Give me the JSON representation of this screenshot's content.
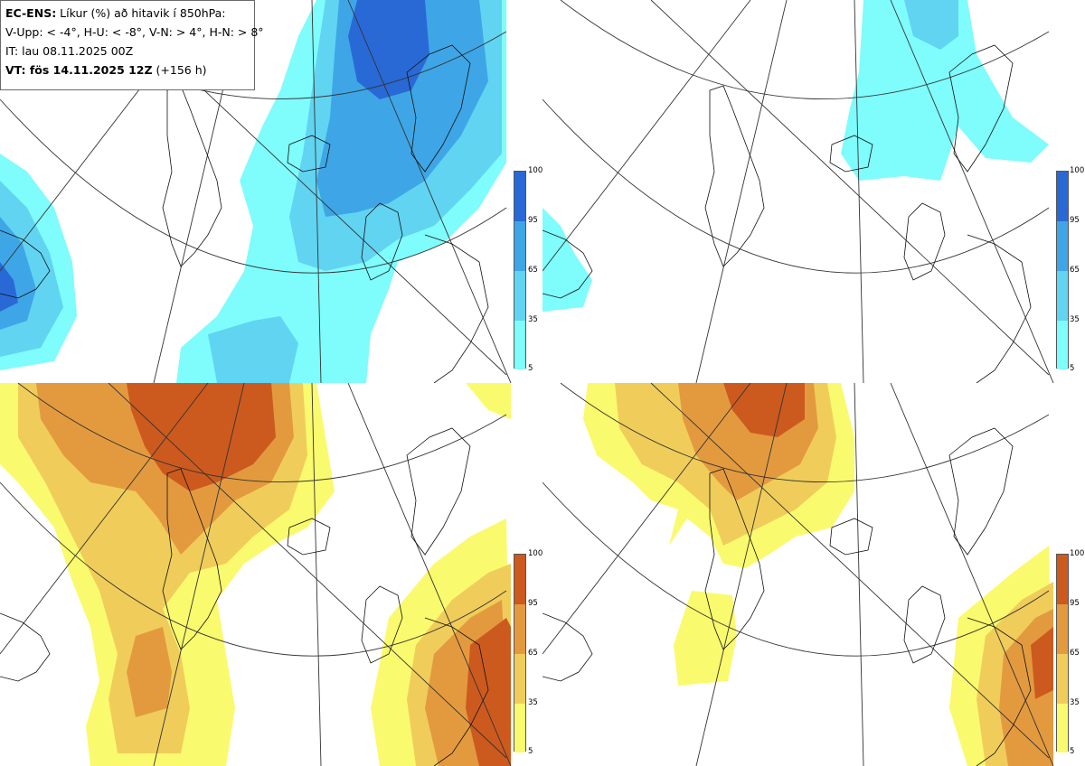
{
  "header": {
    "title_bold": "EC-ENS:",
    "title_rest": " Líkur (%) að hitavik í 850hPa:",
    "thresholds": "V-Upp: < -4°, H-U: < -8°, V-N: > 4°, H-N: > 8°",
    "it_label": "IT: lau 08.11.2025 00Z",
    "vt_bold": "VT: fös 14.11.2025 12Z",
    "vt_rest": " (+156 h)"
  },
  "colorbar": {
    "ticks": [
      "5",
      "35",
      "65",
      "95",
      "100"
    ],
    "cold_colors": [
      "#7ffcfc",
      "#61d4f1",
      "#3ea6e6",
      "#2969d6"
    ],
    "warm_colors": [
      "#fafa6e",
      "#f0cd5a",
      "#e39a3f",
      "#cc5a1e"
    ]
  },
  "panels": [
    {
      "name": "cold-4",
      "level": "V-Upp: < -4°"
    },
    {
      "name": "cold-8",
      "level": "H-U: < -8°"
    },
    {
      "name": "warm-4",
      "level": "V-N: > 4°"
    },
    {
      "name": "warm-8",
      "level": "H-N: > 8°"
    }
  ]
}
